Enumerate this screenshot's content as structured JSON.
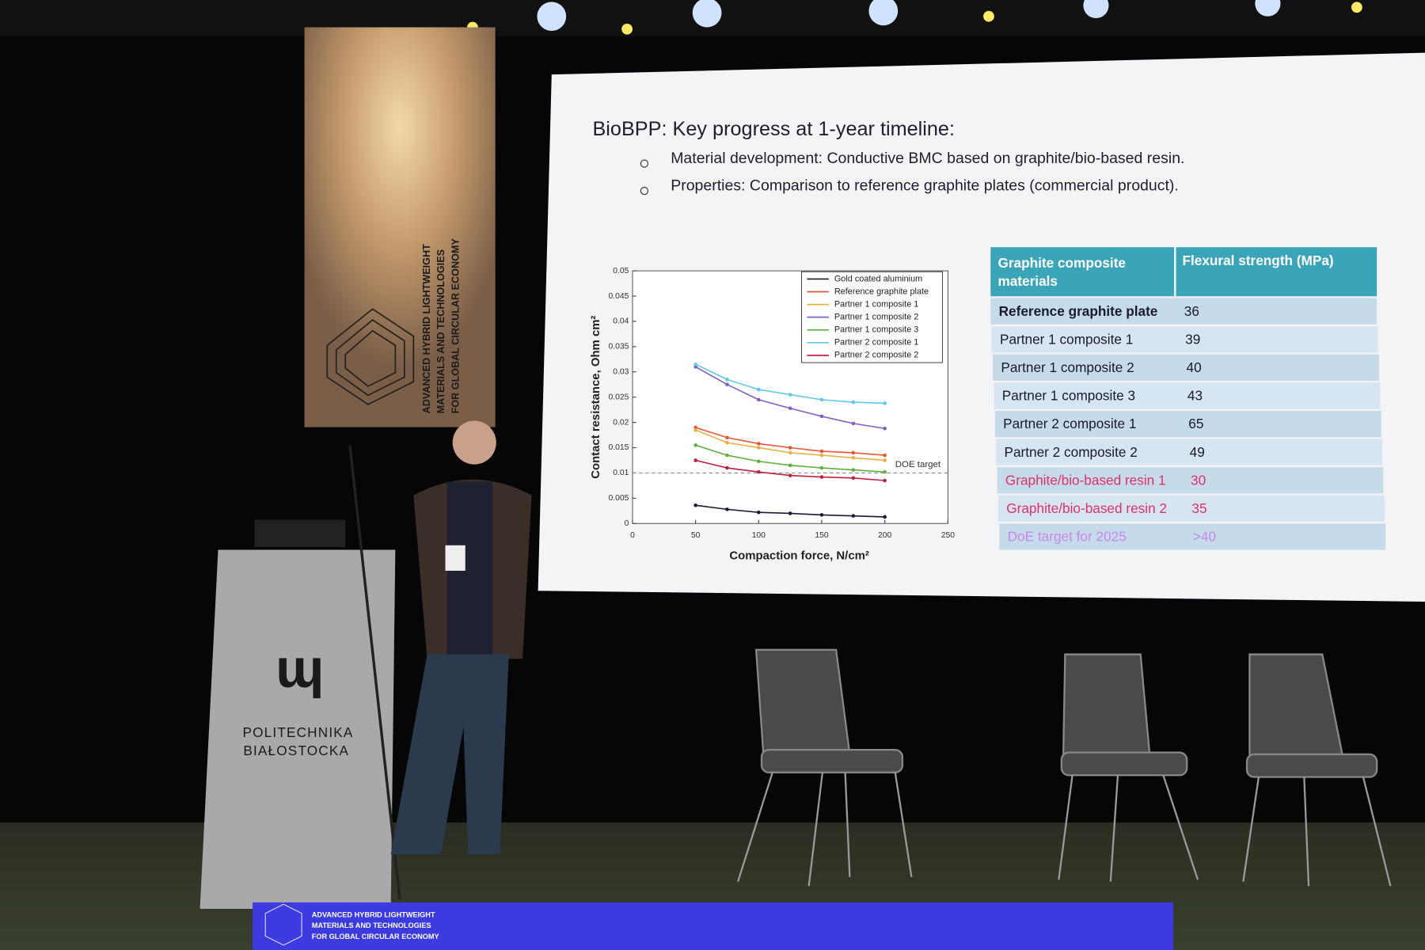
{
  "banner": {
    "text": [
      "ADVANCED HYBRID LIGHTWEIGHT",
      "MATERIALS AND TECHNOLOGIES",
      "FOR GLOBAL CIRCULAR ECONOMY"
    ]
  },
  "podium": {
    "name": [
      "POLITECHNIKA",
      "BIAŁOSTOCKA"
    ]
  },
  "slide": {
    "title": "BioBPP: Key progress at 1-year timeline:",
    "bullets": [
      "Material development: Conductive BMC based on graphite/bio-based resin.",
      "Properties: Comparison to reference graphite plates (commercial product)."
    ],
    "table": {
      "header": [
        "Graphite composite materials",
        "Flexural strength (MPa)"
      ],
      "rows": [
        [
          "Reference graphite plate",
          "36"
        ],
        [
          "Partner 1 composite 1",
          "39"
        ],
        [
          "Partner 1 composite 2",
          "40"
        ],
        [
          "Partner 1 composite 3",
          "43"
        ],
        [
          "Partner 2 composite 1",
          "65"
        ],
        [
          "Partner 2 composite 2",
          "49"
        ],
        [
          "Graphite/bio-based resin 1",
          "30"
        ],
        [
          "Graphite/bio-based resin 2",
          "35"
        ],
        [
          "DoE target for 2025",
          ">40"
        ]
      ]
    }
  },
  "chart_data": {
    "type": "line",
    "x_label": "Compaction force, N/cm²",
    "y_label": "Contact resistance, Ohm cm²",
    "x": [
      50,
      75,
      100,
      125,
      150,
      175,
      200
    ],
    "xlim": [
      0,
      250
    ],
    "xticks": [
      0,
      50,
      100,
      150,
      200,
      250
    ],
    "ylim": [
      0,
      0.05
    ],
    "yticks": [
      0,
      0.005,
      0.01,
      0.015,
      0.02,
      0.025,
      0.03,
      0.035,
      0.04,
      0.045,
      0.05
    ],
    "target": {
      "label": "DOE target",
      "value": 0.01
    },
    "series": [
      {
        "name": "Gold coated aluminium",
        "color": "#1a1a3a",
        "values": [
          0.0036,
          0.0028,
          0.0022,
          0.002,
          0.0017,
          0.0015,
          0.0013
        ]
      },
      {
        "name": "Reference graphite plate",
        "color": "#e8553a",
        "values": [
          0.019,
          0.017,
          0.0158,
          0.015,
          0.0143,
          0.014,
          0.0135
        ]
      },
      {
        "name": "Partner 1 composite 1",
        "color": "#e8b040",
        "values": [
          0.0185,
          0.016,
          0.015,
          0.014,
          0.0135,
          0.013,
          0.0125
        ]
      },
      {
        "name": "Partner 1 composite 2",
        "color": "#8060c0",
        "values": [
          0.031,
          0.0275,
          0.0245,
          0.0228,
          0.0212,
          0.0198,
          0.0188
        ]
      },
      {
        "name": "Partner 1 composite 3",
        "color": "#60b040",
        "values": [
          0.0155,
          0.0135,
          0.0123,
          0.0115,
          0.011,
          0.0106,
          0.0102
        ]
      },
      {
        "name": "Partner 2 composite 1",
        "color": "#60c8e8",
        "values": [
          0.0315,
          0.0285,
          0.0265,
          0.0255,
          0.0245,
          0.024,
          0.0238
        ]
      },
      {
        "name": "Partner 2 composite 2",
        "color": "#c02040",
        "values": [
          0.0125,
          0.011,
          0.0102,
          0.0095,
          0.0092,
          0.009,
          0.0085
        ]
      }
    ]
  }
}
